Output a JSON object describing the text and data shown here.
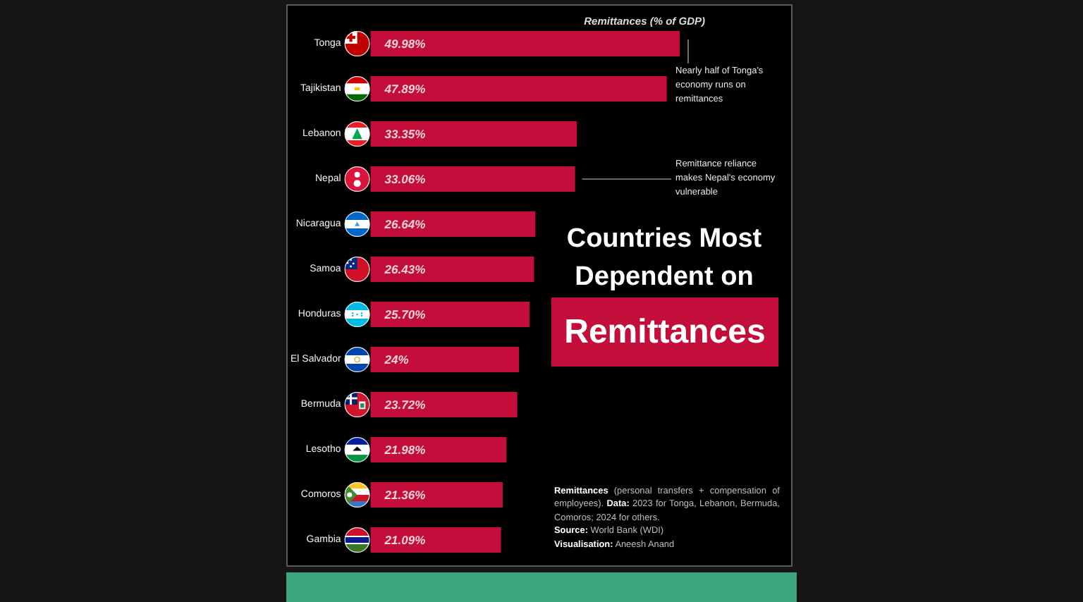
{
  "chart_data": {
    "type": "bar",
    "orientation": "horizontal",
    "title": "Countries Most Dependent on Remittances",
    "xlabel": "Remittances (% of GDP)",
    "categories": [
      "Tonga",
      "Tajikistan",
      "Lebanon",
      "Nepal",
      "Nicaragua",
      "Samoa",
      "Honduras",
      "El Salvador",
      "Bermuda",
      "Lesotho",
      "Comoros",
      "Gambia"
    ],
    "values": [
      49.98,
      47.89,
      33.35,
      33.06,
      26.64,
      26.43,
      25.7,
      24,
      23.72,
      21.98,
      21.36,
      21.09
    ],
    "value_labels": [
      "49.98%",
      "47.89%",
      "33.35%",
      "33.06%",
      "26.64%",
      "26.43%",
      "25.70%",
      "24%",
      "23.72%",
      "21.98%",
      "21.36%",
      "21.09%"
    ],
    "color": "#c30d3a",
    "tick_labels": "y",
    "grid": false,
    "annotations": [
      {
        "text": "Nearly half of Tonga's economy runs on remittances",
        "x": 49.98,
        "y": "Tonga"
      },
      {
        "text": "Remittance reliance makes Nepal's economy vulnerable",
        "x": 33.06,
        "y": "Nepal"
      },
      "Remittances (personal transfers + compensation of employees). Data: 2023 for Tonga, Lebanon, Bermuda, Comoros; 2024 for others.",
      "Source: World Bank (WDI)",
      "Visualisation: Aneesh Anand"
    ]
  }
}
